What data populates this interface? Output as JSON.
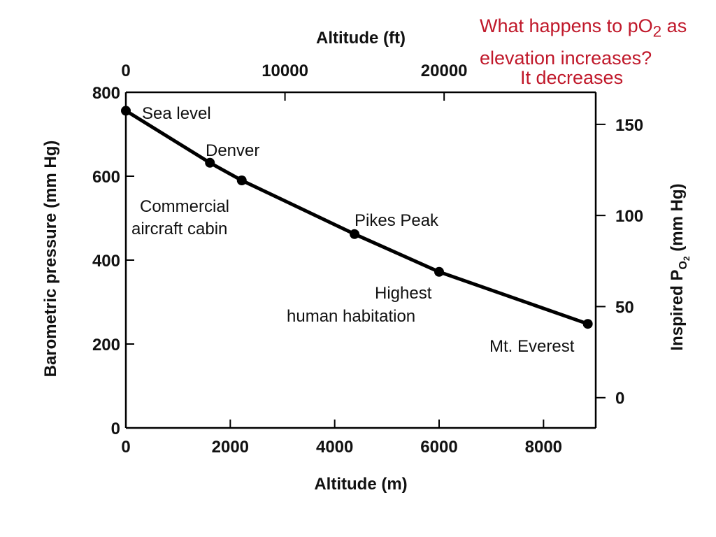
{
  "question": {
    "line1_prefix": "What happens to pO",
    "line1_sub": "2",
    "line1_suffix": " as",
    "line2": "elevation increases?",
    "answer": "It decreases"
  },
  "chart_data": {
    "type": "line",
    "xlabel": "Altitude (m)",
    "x2label": "Altitude (ft)",
    "ylabel": "Barometric pressure (mm Hg)",
    "y2label_prefix": "Inspired P",
    "y2label_sub": "O",
    "y2label_subsub": "2",
    "y2label_suffix": "  (mm Hg)",
    "xlim": [
      0,
      9000
    ],
    "ylim": [
      0,
      800
    ],
    "x2lim_ft": [
      0,
      29528
    ],
    "y2lim": [
      -16.6,
      167.6
    ],
    "x_ticks": [
      0,
      2000,
      4000,
      6000,
      8000
    ],
    "x_tick_labels": [
      "0",
      "2000",
      "4000",
      "6000",
      "8000"
    ],
    "y_ticks": [
      0,
      200,
      400,
      600,
      800
    ],
    "y_tick_labels": [
      "0",
      "200",
      "400",
      "600",
      "800"
    ],
    "x2_ticks_ft": [
      0,
      10000,
      20000
    ],
    "x2_tick_labels": [
      "0",
      "10000",
      "20000"
    ],
    "y2_ticks": [
      0,
      50,
      100,
      150
    ],
    "y2_tick_labels": [
      "0",
      "50",
      "100",
      "150"
    ],
    "grid": false,
    "series": [
      {
        "points": [
          {
            "x": 0,
            "y": 756,
            "label": "Sea level"
          },
          {
            "x": 1610,
            "y": 632,
            "label": "Denver"
          },
          {
            "x": 2220,
            "y": 590,
            "label": "Commercial aircraft cabin"
          },
          {
            "x": 4380,
            "y": 462,
            "label": "Pikes Peak"
          },
          {
            "x": 6000,
            "y": 372,
            "label": "Highest human habitation"
          },
          {
            "x": 8848,
            "y": 248,
            "label": "Mt. Everest"
          }
        ]
      }
    ],
    "annotations": {
      "sea_level": "Sea level",
      "denver": "Denver",
      "cabin_line1": "Commercial",
      "cabin_line2": "aircraft cabin",
      "pikes": "Pikes Peak",
      "habitation_line1": "Highest",
      "habitation_line2": "human habitation",
      "everest": "Mt. Everest"
    }
  }
}
